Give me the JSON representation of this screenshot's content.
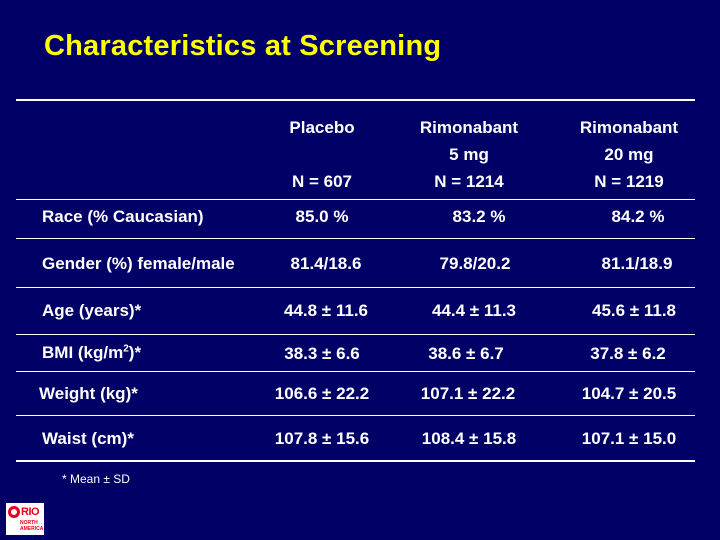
{
  "slide": {
    "title": "Characteristics at Screening",
    "footnote": "* Mean ± SD"
  },
  "columns": [
    {
      "line1": "Placebo",
      "line2": "",
      "line3": "N = 607"
    },
    {
      "line1": "Rimonabant",
      "line2": "5 mg",
      "line3": "N = 1214"
    },
    {
      "line1": "Rimonabant",
      "line2": "20 mg",
      "line3": "N = 1219"
    }
  ],
  "rows": [
    {
      "label": "Race (% Caucasian)",
      "values": [
        "85.0 %",
        "83.2 %",
        "84.2 %"
      ]
    },
    {
      "label": "Gender (%) female/male",
      "values": [
        "81.4/18.6",
        "79.8/20.2",
        "81.1/18.9"
      ]
    },
    {
      "label": "Age (years)*",
      "values": [
        "44.8 ± 11.6",
        "44.4 ± 11.3",
        "45.6 ± 11.8"
      ]
    },
    {
      "label_pre": "BMI (kg/m",
      "label_sup": "2",
      "label_post": ")*",
      "values": [
        "38.3 ± 6.6",
        "38.6 ± 6.7",
        "37.8 ± 6.2"
      ]
    },
    {
      "label": "Weight (kg)*",
      "values": [
        "106.6 ± 22.2",
        "107.1 ± 22.2",
        "104.7 ± 20.5"
      ]
    },
    {
      "label": "Waist (cm)*",
      "values": [
        "107.8 ± 15.6",
        "108.4 ± 15.8",
        "107.1 ± 15.0"
      ]
    }
  ],
  "logo": {
    "name": "RIO",
    "line1": "NORTH",
    "line2": "AMERICA"
  },
  "colors": {
    "background": "#000066",
    "title": "#ffff00",
    "text": "#ffffff",
    "logo": "#e8001c"
  }
}
